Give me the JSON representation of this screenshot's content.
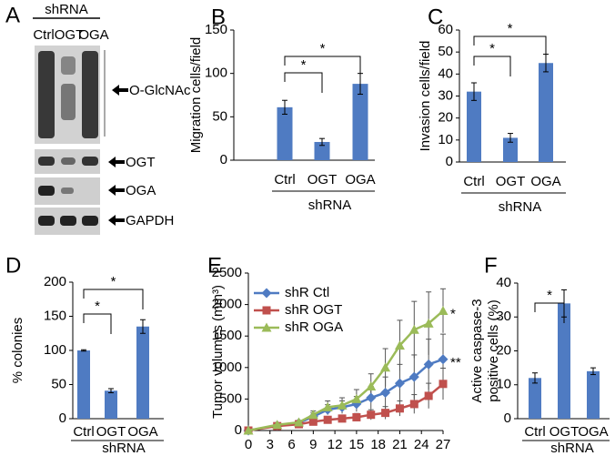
{
  "blot": {
    "panel": "A",
    "group": "shRNA",
    "lanes": [
      "Ctrl",
      "OGT",
      "OGA"
    ],
    "bands": [
      "O-GlcNAc",
      "OGT",
      "OGA",
      "GAPDH"
    ]
  },
  "chart_data": [
    {
      "type": "bar",
      "panel": "B",
      "ylabel": "Migration cells/field",
      "xlabel": "shRNA",
      "categories": [
        "Ctrl",
        "OGT",
        "OGA"
      ],
      "values": [
        61,
        21,
        88
      ],
      "errors": [
        8,
        4,
        12
      ],
      "color": "#4f7bc2",
      "ylim": [
        0,
        150
      ],
      "yticks": [
        0,
        50,
        100,
        150
      ],
      "annotations": [
        "*",
        "*"
      ]
    },
    {
      "type": "bar",
      "panel": "C",
      "ylabel": "Invasion cells/field",
      "xlabel": "shRNA",
      "categories": [
        "Ctrl",
        "OGT",
        "OGA"
      ],
      "values": [
        32,
        11,
        45
      ],
      "errors": [
        4,
        2,
        4
      ],
      "color": "#4f7bc2",
      "ylim": [
        0,
        60
      ],
      "yticks": [
        0,
        10,
        20,
        30,
        40,
        50,
        60
      ],
      "annotations": [
        "*",
        "*"
      ]
    },
    {
      "type": "bar",
      "panel": "D",
      "ylabel": "% colonies",
      "xlabel": "shRNA",
      "categories": [
        "Ctrl",
        "OGT",
        "OGA"
      ],
      "values": [
        100,
        41,
        135
      ],
      "errors": [
        1,
        3,
        10
      ],
      "color": "#4f7bc2",
      "ylim": [
        0,
        200
      ],
      "yticks": [
        0,
        50,
        100,
        150,
        200
      ],
      "annotations": [
        "*",
        "*"
      ]
    },
    {
      "type": "line",
      "panel": "E",
      "ylabel": "Tumor volumes (mm³)",
      "xlabel": "Days",
      "x": [
        0,
        4,
        7,
        9,
        11,
        13,
        15,
        17,
        19,
        21,
        23,
        25,
        27
      ],
      "xlim": [
        0,
        27
      ],
      "xticks": [
        0,
        3,
        6,
        9,
        12,
        15,
        18,
        21,
        24,
        27
      ],
      "ylim": [
        0,
        2500
      ],
      "yticks": [
        0,
        500,
        1000,
        1500,
        2000,
        2500
      ],
      "legend": "upper left",
      "series": [
        {
          "name": "shR Ctl",
          "color": "#4f7bc2",
          "marker": "diamond",
          "values": [
            0,
            80,
            120,
            220,
            330,
            370,
            420,
            520,
            600,
            750,
            850,
            1050,
            1130
          ],
          "errors": [
            0,
            20,
            30,
            60,
            80,
            100,
            120,
            180,
            250,
            300,
            350,
            400,
            400
          ]
        },
        {
          "name": "shR OGT",
          "color": "#c0504d",
          "marker": "square",
          "values": [
            0,
            70,
            100,
            140,
            170,
            190,
            210,
            250,
            280,
            350,
            420,
            550,
            740
          ],
          "errors": [
            0,
            15,
            20,
            30,
            40,
            50,
            60,
            80,
            100,
            120,
            150,
            200,
            250
          ]
        },
        {
          "name": "shR OGA",
          "color": "#9bbb59",
          "marker": "triangle",
          "values": [
            0,
            90,
            130,
            250,
            370,
            400,
            500,
            700,
            1000,
            1350,
            1600,
            1700,
            1900
          ],
          "errors": [
            0,
            20,
            30,
            60,
            100,
            120,
            150,
            200,
            300,
            400,
            450,
            500,
            350
          ]
        }
      ],
      "annotations": [
        "*",
        "**"
      ]
    },
    {
      "type": "bar",
      "panel": "F",
      "ylabel": [
        "Active caspase-3",
        "positive cells (%)"
      ],
      "xlabel": "shRNA",
      "categories": [
        "Ctrl",
        "OGT",
        "OGA"
      ],
      "values": [
        12,
        34,
        14
      ],
      "errors": [
        1.5,
        4,
        1
      ],
      "color": "#4f7bc2",
      "ylim": [
        0,
        40
      ],
      "yticks": [
        0,
        10,
        20,
        30,
        40
      ],
      "annotations": [
        "*"
      ]
    }
  ]
}
